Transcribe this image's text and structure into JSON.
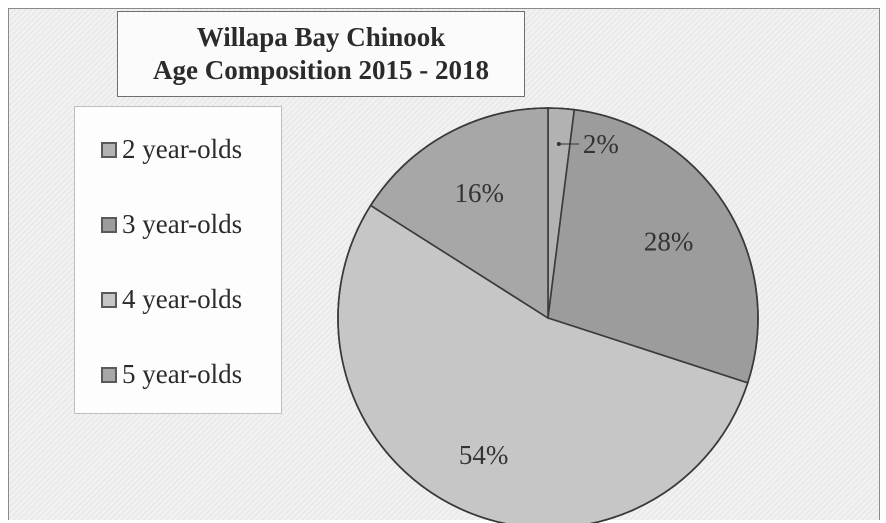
{
  "chart_data": {
    "type": "pie",
    "title_lines": [
      "Willapa Bay Chinook",
      "Age Composition 2015 - 2018"
    ],
    "categories": [
      "2 year-olds",
      "3 year-olds",
      "4 year-olds",
      "5 year-olds"
    ],
    "values": [
      2,
      28,
      54,
      16
    ],
    "value_labels": [
      "2%",
      "28%",
      "54%",
      "16%"
    ],
    "colors": [
      "#b2b2b2",
      "#9c9c9c",
      "#c6c6c6",
      "#a7a7a7"
    ],
    "legend_position": "left"
  }
}
